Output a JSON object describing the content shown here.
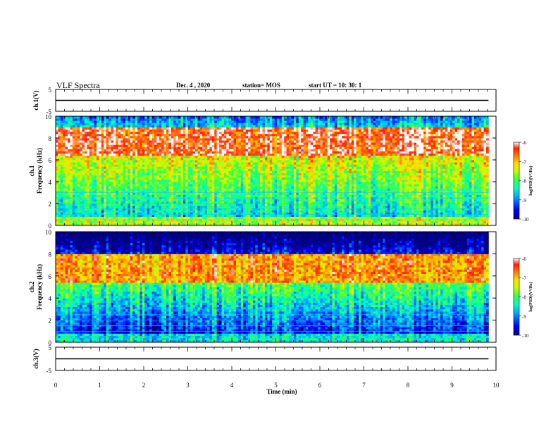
{
  "header": {
    "title": "VLF Spectra",
    "date": "Dec. 4 , 2020",
    "station": "station= MOS",
    "start": "start UT =  10: 30: 1"
  },
  "chart_data": [
    {
      "type": "line",
      "panel": "ch1-waveform",
      "ylabel": "ch.1(V)",
      "ylim": [
        -5,
        5
      ],
      "yticks": [
        "5",
        "-5"
      ],
      "series": [
        {
          "values_approx_constant": 0
        }
      ]
    },
    {
      "type": "heatmap",
      "panel": "ch1-spectrogram",
      "ylabel": "ch.1\nFrequency (kHz)",
      "ylabel_line1": "ch.1",
      "ylabel_line2": "Frequency (kHz)",
      "ylim": [
        0,
        10
      ],
      "yticks": [
        "0",
        "2",
        "4",
        "6",
        "8",
        "10"
      ],
      "xlim": [
        0,
        10
      ],
      "colorbar": {
        "label": "log(PSD)(V²/Hz)",
        "range": [
          -10,
          -6
        ],
        "ticks": [
          "-6",
          "-7",
          "-8",
          "-9",
          "-10"
        ]
      },
      "intense_band_khz": [
        6.5,
        9.0
      ],
      "intense_level": -6.3,
      "background_level": -8.5
    },
    {
      "type": "heatmap",
      "panel": "ch2-spectrogram",
      "ylabel_line1": "ch.2",
      "ylabel_line2": "Frequency (kHz)",
      "ylim": [
        0,
        10
      ],
      "yticks": [
        "0",
        "2",
        "4",
        "6",
        "8",
        "10"
      ],
      "xlim": [
        0,
        10
      ],
      "colorbar": {
        "label": "log(PSD)(V²/Hz)",
        "range": [
          -10,
          -6
        ],
        "ticks": [
          "-6",
          "-7",
          "-8",
          "-9",
          "-10"
        ]
      },
      "intense_band_khz": [
        5.5,
        8.0
      ],
      "intense_level": -6.8,
      "background_level": -9.5
    },
    {
      "type": "line",
      "panel": "ch3-waveform",
      "ylabel": "ch.3(V)",
      "ylim": [
        -5,
        5
      ],
      "yticks": [
        "5",
        "-5"
      ],
      "xlabel": "Time (min)",
      "xlim": [
        0,
        10
      ],
      "xticks": [
        "0",
        "1",
        "2",
        "3",
        "4",
        "5",
        "6",
        "7",
        "8",
        "9",
        "10"
      ],
      "series": [
        {
          "values_approx_constant": 0
        }
      ]
    }
  ],
  "colors": {
    "colormap": [
      "#000080",
      "#0000ff",
      "#00a0ff",
      "#00ffc0",
      "#40ff40",
      "#c0ff00",
      "#ffe000",
      "#ff8000",
      "#ff2000",
      "#ffffff"
    ]
  }
}
